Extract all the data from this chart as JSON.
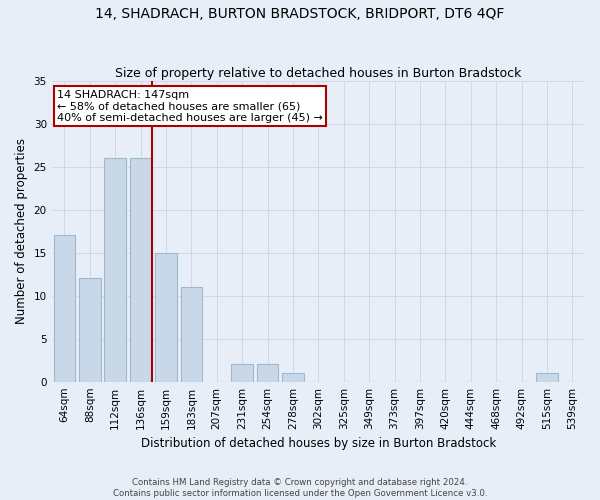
{
  "title": "14, SHADRACH, BURTON BRADSTOCK, BRIDPORT, DT6 4QF",
  "subtitle": "Size of property relative to detached houses in Burton Bradstock",
  "xlabel": "Distribution of detached houses by size in Burton Bradstock",
  "ylabel": "Number of detached properties",
  "footnote1": "Contains HM Land Registry data © Crown copyright and database right 2024.",
  "footnote2": "Contains public sector information licensed under the Open Government Licence v3.0.",
  "bin_labels": [
    "64sqm",
    "88sqm",
    "112sqm",
    "136sqm",
    "159sqm",
    "183sqm",
    "207sqm",
    "231sqm",
    "254sqm",
    "278sqm",
    "302sqm",
    "325sqm",
    "349sqm",
    "373sqm",
    "397sqm",
    "420sqm",
    "444sqm",
    "468sqm",
    "492sqm",
    "515sqm",
    "539sqm"
  ],
  "bar_values": [
    17,
    12,
    26,
    26,
    15,
    11,
    0,
    2,
    2,
    1,
    0,
    0,
    0,
    0,
    0,
    0,
    0,
    0,
    0,
    1,
    0
  ],
  "bar_color": "#c8d8e8",
  "bar_edge_color": "#a0b8cc",
  "vline_color": "#aa0000",
  "annotation_line1": "14 SHADRACH: 147sqm",
  "annotation_line2": "← 58% of detached houses are smaller (65)",
  "annotation_line3": "40% of semi-detached houses are larger (45) →",
  "annotation_box_color": "#ffffff",
  "annotation_box_edge": "#aa0000",
  "ylim": [
    0,
    35
  ],
  "yticks": [
    0,
    5,
    10,
    15,
    20,
    25,
    30,
    35
  ],
  "grid_color": "#d0d8e8",
  "bg_color": "#e8eef8",
  "title_fontsize": 10,
  "subtitle_fontsize": 9,
  "axis_label_fontsize": 8.5,
  "tick_fontsize": 7.5,
  "annotation_fontsize": 8
}
